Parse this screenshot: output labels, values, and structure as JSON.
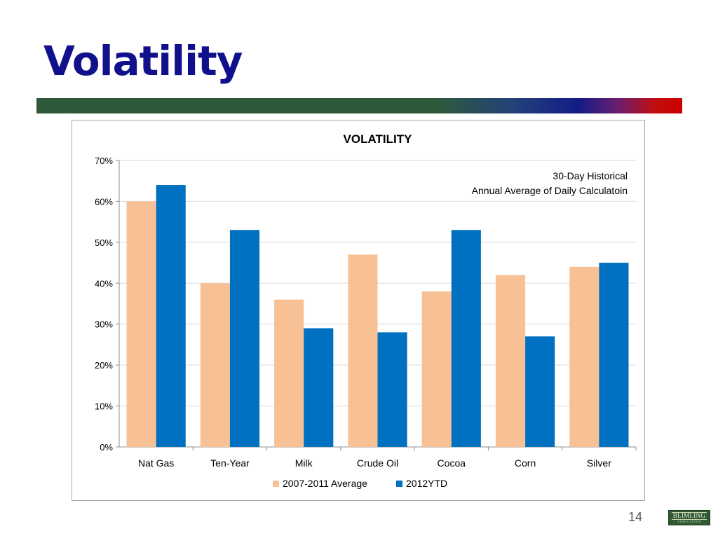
{
  "slide": {
    "title": "Volatility",
    "page_number": "14",
    "logo": {
      "name": "BLIMLING",
      "subtitle": "ASSOCIATES"
    }
  },
  "colors": {
    "title": "#10108c",
    "series_average": "#f8c195",
    "series_2012": "#0070c0",
    "grid": "#d9d9d9",
    "axis_text": "#000000"
  },
  "chart_data": {
    "type": "bar",
    "title": "VOLATILITY",
    "annotation": [
      "30-Day Historical",
      "Annual Average of Daily Calculatoin"
    ],
    "categories": [
      "Nat Gas",
      "Ten-Year",
      "Milk",
      "Crude Oil",
      "Cocoa",
      "Corn",
      "Silver"
    ],
    "series": [
      {
        "name": "2007-2011 Average",
        "values": [
          0.6,
          0.4,
          0.36,
          0.47,
          0.38,
          0.42,
          0.44
        ]
      },
      {
        "name": "2012YTD",
        "values": [
          0.64,
          0.53,
          0.29,
          0.28,
          0.53,
          0.27,
          0.45
        ]
      }
    ],
    "ylim": [
      0,
      0.7
    ],
    "yticks": [
      0,
      0.1,
      0.2,
      0.3,
      0.4,
      0.5,
      0.6,
      0.7
    ],
    "ytick_labels": [
      "0%",
      "10%",
      "20%",
      "30%",
      "40%",
      "50%",
      "60%",
      "70%"
    ],
    "xlabel": "",
    "ylabel": "",
    "grid": true,
    "legend": "bottom"
  }
}
